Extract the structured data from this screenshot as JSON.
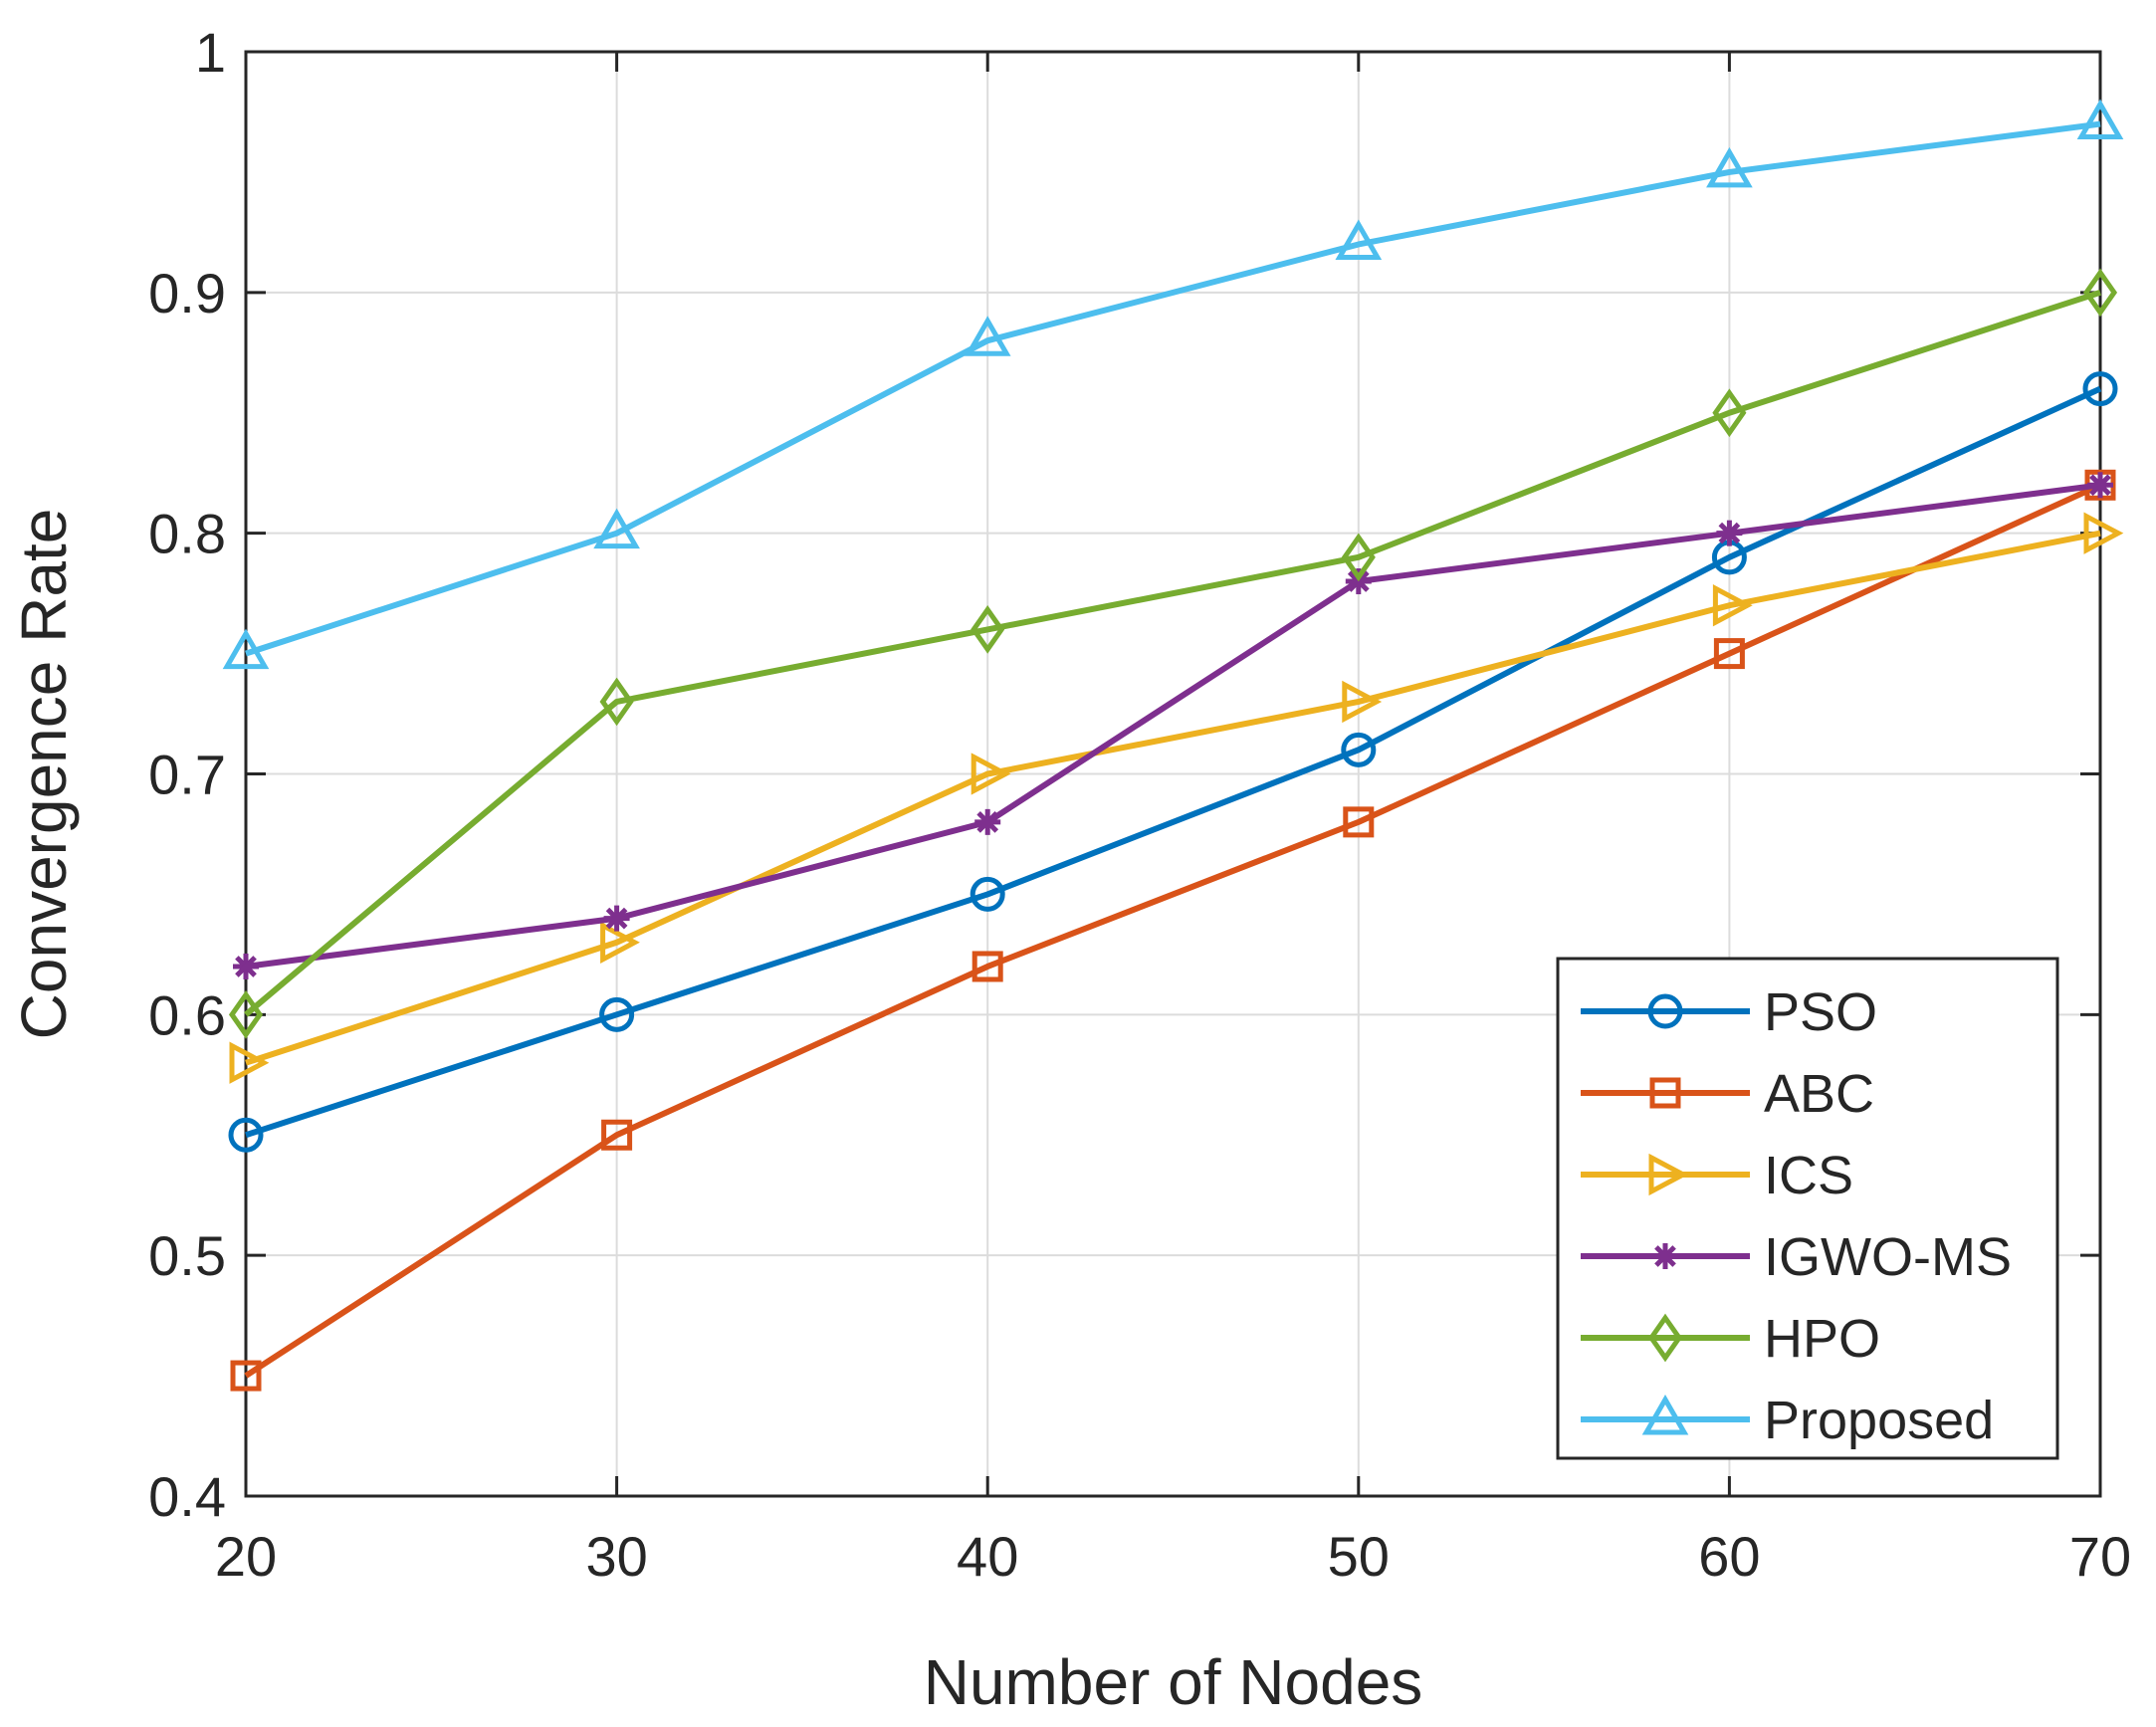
{
  "chart_data": {
    "type": "line",
    "title": "",
    "xlabel": "Number of Nodes",
    "ylabel": "Convergence Rate",
    "x": [
      20,
      30,
      40,
      50,
      60,
      70
    ],
    "xlim": [
      20,
      70
    ],
    "ylim": [
      0.4,
      1
    ],
    "xticks": [
      20,
      30,
      40,
      50,
      60,
      70
    ],
    "xtick_labels": [
      "20",
      "30",
      "40",
      "50",
      "60",
      "70"
    ],
    "yticks": [
      0.4,
      0.5,
      0.6,
      0.7,
      0.8,
      0.9,
      1
    ],
    "ytick_labels": [
      "0.4",
      "0.5",
      "0.6",
      "0.7",
      "0.8",
      "0.9",
      "1"
    ],
    "grid": true,
    "legend_position": "bottom-right",
    "series": [
      {
        "name": "PSO",
        "values": [
          0.55,
          0.6,
          0.65,
          0.71,
          0.79,
          0.86
        ],
        "color": "#0072BD",
        "marker": "circle"
      },
      {
        "name": "ABC",
        "values": [
          0.45,
          0.55,
          0.62,
          0.68,
          0.75,
          0.82
        ],
        "color": "#D95319",
        "marker": "square"
      },
      {
        "name": "ICS",
        "values": [
          0.58,
          0.63,
          0.7,
          0.73,
          0.77,
          0.8
        ],
        "color": "#EDB120",
        "marker": "triangle-right"
      },
      {
        "name": "IGWO-MS",
        "values": [
          0.62,
          0.64,
          0.68,
          0.78,
          0.8,
          0.82
        ],
        "color": "#7E2F8E",
        "marker": "asterisk"
      },
      {
        "name": "HPO",
        "values": [
          0.6,
          0.73,
          0.76,
          0.79,
          0.85,
          0.9
        ],
        "color": "#77AC30",
        "marker": "diamond"
      },
      {
        "name": "Proposed",
        "values": [
          0.75,
          0.8,
          0.88,
          0.92,
          0.95,
          0.97
        ],
        "color": "#4DBEEE",
        "marker": "triangle-up"
      }
    ]
  }
}
